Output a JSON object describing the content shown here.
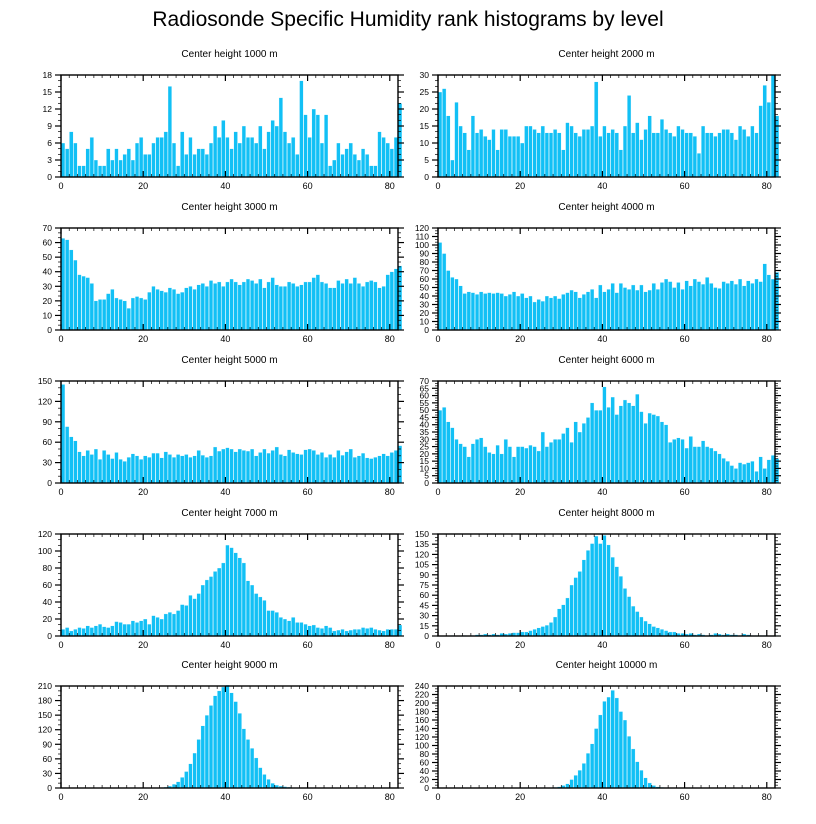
{
  "title": "Radiosonde Specific Humidity rank histograms by level",
  "colors": {
    "bar": "#12c0f5",
    "bar_edge": "#ffffff",
    "axis": "#000000"
  },
  "chart_data": [
    {
      "type": "bar",
      "title": "Center height 1000 m",
      "xlabel": "",
      "ylabel": "",
      "xlim": [
        0,
        82
      ],
      "ylim": [
        0,
        18
      ],
      "xticks": [
        0,
        20,
        40,
        60,
        80
      ],
      "yticks": [
        0,
        3,
        6,
        9,
        12,
        15,
        18
      ],
      "values": [
        6,
        5,
        8,
        6,
        2,
        2,
        5,
        7,
        3,
        2,
        2,
        5,
        3,
        5,
        3,
        4,
        5,
        3,
        6,
        7,
        4,
        4,
        6,
        7,
        7,
        8,
        16,
        6,
        2,
        8,
        4,
        7,
        4,
        5,
        5,
        4,
        6,
        9,
        7,
        10,
        7,
        5,
        8,
        6,
        9,
        7,
        7,
        6,
        9,
        5,
        8,
        10,
        9,
        14,
        8,
        6,
        7,
        4,
        17,
        11,
        7,
        12,
        11,
        6,
        11,
        2,
        3,
        6,
        4,
        5,
        6,
        4,
        3,
        5,
        4,
        2,
        2,
        8,
        7,
        6,
        5,
        7,
        13
      ]
    },
    {
      "type": "bar",
      "title": "Center height 2000 m",
      "xlabel": "",
      "ylabel": "",
      "xlim": [
        0,
        82
      ],
      "ylim": [
        0,
        30
      ],
      "xticks": [
        0,
        20,
        40,
        60,
        80
      ],
      "yticks": [
        0,
        5,
        10,
        15,
        20,
        25,
        30
      ],
      "values": [
        25,
        26,
        18,
        5,
        22,
        15,
        13,
        8,
        18,
        13,
        14,
        12,
        11,
        14,
        8,
        14,
        14,
        12,
        12,
        12,
        10,
        15,
        15,
        14,
        13,
        15,
        13,
        13,
        14,
        13,
        8,
        16,
        15,
        13,
        12,
        14,
        14,
        15,
        28,
        12,
        15,
        13,
        14,
        13,
        8,
        15,
        24,
        13,
        16,
        11,
        14,
        18,
        13,
        13,
        17,
        14,
        13,
        12,
        15,
        14,
        13,
        13,
        12,
        7,
        15,
        13,
        13,
        12,
        13,
        14,
        14,
        13,
        11,
        15,
        14,
        12,
        15,
        13,
        21,
        27,
        22,
        30,
        18
      ]
    },
    {
      "type": "bar",
      "title": "Center height 3000 m",
      "xlabel": "",
      "ylabel": "",
      "xlim": [
        0,
        82
      ],
      "ylim": [
        0,
        70
      ],
      "xticks": [
        0,
        20,
        40,
        60,
        80
      ],
      "yticks": [
        0,
        10,
        20,
        30,
        40,
        50,
        60,
        70
      ],
      "values": [
        63,
        62,
        55,
        48,
        38,
        37,
        36,
        32,
        20,
        21,
        21,
        25,
        28,
        22,
        21,
        20,
        15,
        22,
        23,
        22,
        21,
        26,
        30,
        28,
        27,
        26,
        29,
        28,
        25,
        26,
        29,
        30,
        28,
        31,
        32,
        30,
        34,
        32,
        33,
        30,
        33,
        35,
        33,
        31,
        33,
        35,
        34,
        32,
        35,
        29,
        33,
        36,
        31,
        30,
        30,
        33,
        32,
        30,
        31,
        33,
        33,
        36,
        38,
        33,
        32,
        29,
        29,
        34,
        32,
        35,
        32,
        36,
        32,
        30,
        33,
        34,
        33,
        29,
        30,
        38,
        40,
        42,
        44
      ]
    },
    {
      "type": "bar",
      "title": "Center height 4000 m",
      "xlabel": "",
      "ylabel": "",
      "xlim": [
        0,
        82
      ],
      "ylim": [
        0,
        120
      ],
      "xticks": [
        0,
        20,
        40,
        60,
        80
      ],
      "yticks": [
        0,
        10,
        20,
        30,
        40,
        50,
        60,
        70,
        80,
        90,
        100,
        110,
        120
      ],
      "values": [
        103,
        90,
        70,
        62,
        60,
        52,
        43,
        45,
        44,
        42,
        45,
        43,
        44,
        43,
        44,
        43,
        40,
        42,
        45,
        40,
        43,
        38,
        40,
        33,
        36,
        34,
        40,
        38,
        40,
        37,
        42,
        44,
        47,
        45,
        38,
        42,
        45,
        48,
        38,
        53,
        45,
        48,
        55,
        44,
        55,
        50,
        48,
        53,
        47,
        53,
        45,
        47,
        55,
        48,
        56,
        60,
        57,
        50,
        56,
        48,
        58,
        52,
        60,
        57,
        54,
        62,
        55,
        50,
        49,
        57,
        55,
        58,
        54,
        60,
        52,
        58,
        55,
        60,
        57,
        78,
        65,
        60,
        68
      ]
    },
    {
      "type": "bar",
      "title": "Center height 5000 m",
      "xlabel": "",
      "ylabel": "",
      "xlim": [
        0,
        82
      ],
      "ylim": [
        0,
        150
      ],
      "xticks": [
        0,
        20,
        40,
        60,
        80
      ],
      "yticks": [
        0,
        30,
        60,
        90,
        120,
        150
      ],
      "values": [
        145,
        83,
        68,
        62,
        46,
        40,
        48,
        42,
        50,
        35,
        48,
        42,
        36,
        45,
        35,
        32,
        38,
        43,
        40,
        35,
        40,
        38,
        44,
        44,
        37,
        46,
        42,
        38,
        42,
        40,
        42,
        38,
        40,
        48,
        41,
        38,
        40,
        53,
        47,
        50,
        52,
        50,
        46,
        50,
        48,
        47,
        50,
        40,
        45,
        50,
        44,
        48,
        53,
        42,
        40,
        49,
        45,
        43,
        42,
        49,
        50,
        48,
        42,
        45,
        38,
        42,
        38,
        48,
        41,
        46,
        50,
        38,
        40,
        44,
        37,
        36,
        38,
        40,
        43,
        40,
        45,
        48,
        55
      ]
    },
    {
      "type": "bar",
      "title": "Center height 6000 m",
      "xlabel": "",
      "ylabel": "",
      "xlim": [
        0,
        82
      ],
      "ylim": [
        0,
        70
      ],
      "xticks": [
        0,
        20,
        40,
        60,
        80
      ],
      "yticks": [
        0,
        5,
        10,
        15,
        20,
        25,
        30,
        35,
        40,
        45,
        50,
        55,
        60,
        65,
        70
      ],
      "values": [
        50,
        52,
        42,
        38,
        30,
        27,
        25,
        18,
        27,
        30,
        31,
        25,
        21,
        20,
        26,
        20,
        30,
        25,
        18,
        25,
        25,
        24,
        26,
        25,
        22,
        35,
        25,
        28,
        30,
        30,
        34,
        38,
        28,
        42,
        35,
        41,
        45,
        55,
        50,
        50,
        66,
        52,
        59,
        47,
        53,
        57,
        55,
        53,
        61,
        49,
        41,
        48,
        47,
        46,
        42,
        40,
        28,
        30,
        31,
        30,
        24,
        32,
        25,
        25,
        29,
        25,
        24,
        22,
        20,
        17,
        15,
        12,
        10,
        14,
        13,
        14,
        15,
        8,
        18,
        10,
        16,
        19,
        17
      ]
    },
    {
      "type": "bar",
      "title": "Center height 7000 m",
      "xlabel": "",
      "ylabel": "",
      "xlim": [
        0,
        82
      ],
      "ylim": [
        0,
        120
      ],
      "xticks": [
        0,
        20,
        40,
        60,
        80
      ],
      "yticks": [
        0,
        20,
        40,
        60,
        80,
        100,
        120
      ],
      "values": [
        8,
        10,
        6,
        8,
        10,
        9,
        12,
        10,
        12,
        14,
        11,
        10,
        12,
        17,
        16,
        14,
        14,
        18,
        16,
        18,
        20,
        14,
        24,
        22,
        20,
        26,
        28,
        26,
        30,
        37,
        36,
        48,
        44,
        50,
        60,
        66,
        70,
        76,
        80,
        86,
        107,
        104,
        98,
        92,
        86,
        65,
        60,
        50,
        46,
        42,
        30,
        30,
        28,
        22,
        20,
        18,
        22,
        16,
        16,
        14,
        12,
        13,
        10,
        9,
        12,
        10,
        6,
        7,
        8,
        6,
        7,
        8,
        8,
        10,
        9,
        10,
        8,
        7,
        6,
        8,
        8,
        8,
        13
      ]
    },
    {
      "type": "bar",
      "title": "Center height 8000 m",
      "xlabel": "",
      "ylabel": "",
      "xlim": [
        0,
        82
      ],
      "ylim": [
        0,
        150
      ],
      "xticks": [
        0,
        20,
        40,
        60,
        80
      ],
      "yticks": [
        0,
        15,
        30,
        45,
        60,
        75,
        90,
        105,
        120,
        135,
        150
      ],
      "values": [
        0,
        0,
        0,
        1,
        0,
        0,
        1,
        0,
        1,
        2,
        2,
        3,
        2,
        3,
        2,
        4,
        3,
        4,
        5,
        5,
        6,
        6,
        8,
        10,
        12,
        14,
        16,
        20,
        28,
        40,
        46,
        56,
        75,
        86,
        95,
        112,
        126,
        136,
        147,
        136,
        148,
        134,
        116,
        102,
        88,
        70,
        58,
        44,
        36,
        28,
        22,
        18,
        14,
        12,
        10,
        8,
        6,
        6,
        4,
        4,
        3,
        4,
        2,
        3,
        2,
        1,
        2,
        4,
        3,
        2,
        3,
        2,
        2,
        1,
        3,
        2,
        1,
        1,
        1,
        1,
        0,
        0,
        1
      ]
    },
    {
      "type": "bar",
      "title": "Center height 9000 m",
      "xlabel": "",
      "ylabel": "",
      "xlim": [
        0,
        82
      ],
      "ylim": [
        0,
        210
      ],
      "xticks": [
        0,
        20,
        40,
        60,
        80
      ],
      "yticks": [
        0,
        30,
        60,
        90,
        120,
        150,
        180,
        210
      ],
      "values": [
        0,
        0,
        0,
        0,
        0,
        0,
        0,
        0,
        0,
        0,
        0,
        0,
        0,
        0,
        0,
        0,
        0,
        0,
        0,
        0,
        0,
        0,
        0,
        1,
        1,
        2,
        4,
        8,
        13,
        22,
        34,
        50,
        72,
        100,
        128,
        150,
        170,
        190,
        200,
        208,
        212,
        196,
        178,
        154,
        122,
        100,
        82,
        62,
        42,
        28,
        18,
        10,
        6,
        4,
        3,
        2,
        1,
        1,
        0,
        0,
        0,
        0,
        0,
        0,
        0,
        0,
        0,
        0,
        0,
        0,
        0,
        0,
        0,
        0,
        0,
        0,
        0,
        0,
        0,
        0,
        0,
        0,
        0
      ]
    },
    {
      "type": "bar",
      "title": "Center height 10000 m",
      "xlabel": "",
      "ylabel": "",
      "xlim": [
        0,
        82
      ],
      "ylim": [
        0,
        240
      ],
      "xticks": [
        0,
        20,
        40,
        60,
        80
      ],
      "yticks": [
        0,
        20,
        40,
        60,
        80,
        100,
        120,
        140,
        160,
        180,
        200,
        220,
        240
      ],
      "values": [
        0,
        0,
        0,
        0,
        0,
        0,
        0,
        0,
        0,
        0,
        0,
        0,
        0,
        0,
        0,
        0,
        0,
        0,
        0,
        0,
        0,
        0,
        0,
        0,
        0,
        0,
        0,
        1,
        2,
        3,
        6,
        10,
        20,
        30,
        42,
        58,
        82,
        104,
        140,
        172,
        204,
        214,
        230,
        212,
        180,
        160,
        122,
        92,
        62,
        42,
        24,
        12,
        6,
        3,
        2,
        1,
        0,
        0,
        0,
        0,
        0,
        0,
        0,
        0,
        0,
        0,
        0,
        0,
        0,
        0,
        0,
        0,
        0,
        0,
        0,
        0,
        0,
        0,
        0,
        0,
        0,
        0,
        0
      ]
    }
  ]
}
